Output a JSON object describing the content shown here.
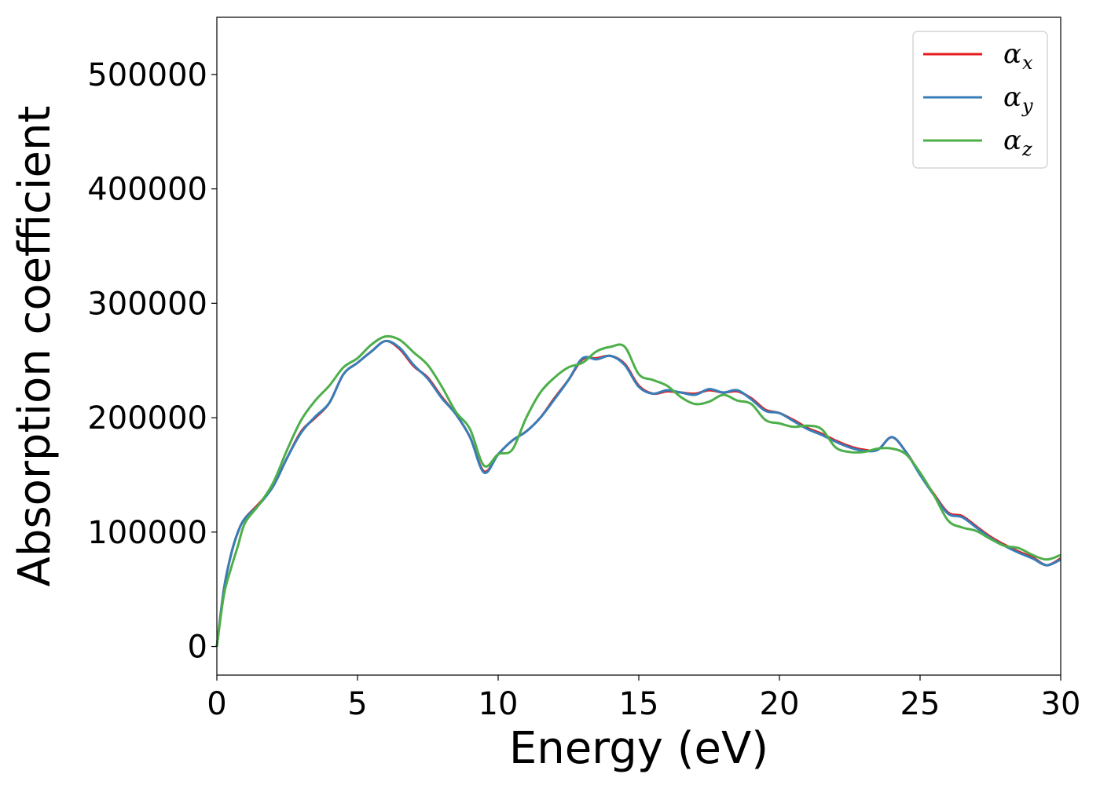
{
  "chart_data": {
    "type": "line",
    "title": "",
    "xlabel": "Energy (eV)",
    "ylabel": "Absorption coefficient",
    "xlim": [
      0,
      30
    ],
    "ylim": [
      -25000,
      550000
    ],
    "xticks": [
      0,
      5,
      10,
      15,
      20,
      25,
      30
    ],
    "yticks": [
      0,
      100000,
      200000,
      300000,
      400000,
      500000
    ],
    "xtick_labels": [
      "0",
      "5",
      "10",
      "15",
      "20",
      "25",
      "30"
    ],
    "ytick_labels": [
      "0",
      "100000",
      "200000",
      "300000",
      "400000",
      "500000"
    ],
    "grid": false,
    "legend_position": "top-right",
    "x": [
      0,
      0.25,
      0.5,
      0.75,
      1,
      1.5,
      2,
      2.5,
      3,
      3.5,
      4,
      4.5,
      5,
      5.5,
      6,
      6.5,
      7,
      7.5,
      8,
      8.5,
      9,
      9.5,
      10,
      10.5,
      11,
      11.5,
      12,
      12.5,
      13,
      13.5,
      14,
      14.5,
      15,
      15.5,
      16,
      16.5,
      17,
      17.5,
      18,
      18.5,
      19,
      19.5,
      20,
      20.5,
      21,
      21.5,
      22,
      22.5,
      23,
      23.5,
      24,
      24.5,
      25,
      25.5,
      26,
      26.5,
      27,
      27.5,
      28,
      28.5,
      29,
      29.5,
      30
    ],
    "series": [
      {
        "name": "α",
        "subscript": "x",
        "color": "#e41a1c",
        "values": [
          0,
          50000,
          80000,
          100000,
          112000,
          125000,
          140000,
          165000,
          188000,
          200000,
          213000,
          238000,
          248000,
          258000,
          267000,
          260000,
          245000,
          235000,
          218000,
          203000,
          183000,
          153000,
          168000,
          180000,
          188000,
          200000,
          217000,
          233000,
          251000,
          252000,
          254000,
          247000,
          228000,
          221000,
          223000,
          222000,
          221000,
          224000,
          222000,
          223000,
          217000,
          207000,
          204000,
          198000,
          191000,
          186000,
          180000,
          175000,
          172000,
          172000,
          183000,
          170000,
          151000,
          133000,
          117000,
          114000,
          105000,
          96000,
          89000,
          83000,
          78000,
          71000,
          77000
        ]
      },
      {
        "name": "α",
        "subscript": "y",
        "color": "#377eb8",
        "values": [
          0,
          50000,
          80000,
          100000,
          112000,
          124000,
          140000,
          165000,
          187000,
          201000,
          213000,
          238000,
          248000,
          258000,
          267000,
          261000,
          246000,
          234000,
          217000,
          203000,
          183000,
          152000,
          168000,
          180000,
          188000,
          200000,
          216000,
          233000,
          252000,
          251000,
          254000,
          246000,
          227000,
          221000,
          224000,
          222000,
          220000,
          225000,
          222000,
          224000,
          216000,
          206000,
          204000,
          197000,
          190000,
          185000,
          179000,
          174000,
          171000,
          172000,
          183000,
          170000,
          150000,
          132000,
          116000,
          113000,
          104000,
          95000,
          88000,
          82000,
          77000,
          71000,
          76000
        ]
      },
      {
        "name": "α",
        "subscript": "z",
        "color": "#4daf4a",
        "values": [
          0,
          45000,
          68000,
          88000,
          108000,
          124000,
          143000,
          172000,
          198000,
          215000,
          228000,
          244000,
          252000,
          264000,
          271000,
          268000,
          257000,
          246000,
          227000,
          205000,
          190000,
          158000,
          168000,
          172000,
          200000,
          222000,
          235000,
          244000,
          248000,
          258000,
          262000,
          262000,
          238000,
          233000,
          228000,
          218000,
          212000,
          214000,
          220000,
          215000,
          212000,
          198000,
          195000,
          192000,
          193000,
          190000,
          174000,
          170000,
          170000,
          173000,
          173000,
          168000,
          152000,
          132000,
          110000,
          104000,
          101000,
          94000,
          88000,
          86000,
          80000,
          76000,
          80000
        ]
      }
    ]
  }
}
